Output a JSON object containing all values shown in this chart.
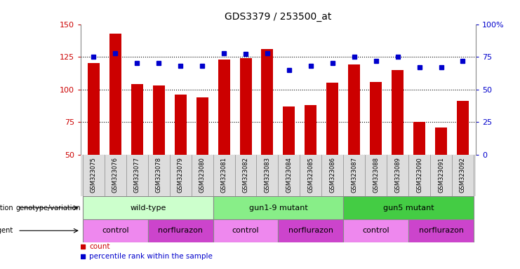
{
  "title": "GDS3379 / 253500_at",
  "samples": [
    "GSM323075",
    "GSM323076",
    "GSM323077",
    "GSM323078",
    "GSM323079",
    "GSM323080",
    "GSM323081",
    "GSM323082",
    "GSM323083",
    "GSM323084",
    "GSM323085",
    "GSM323086",
    "GSM323087",
    "GSM323088",
    "GSM323089",
    "GSM323090",
    "GSM323091",
    "GSM323092"
  ],
  "counts": [
    120,
    143,
    104,
    103,
    96,
    94,
    123,
    124,
    131,
    87,
    88,
    105,
    119,
    106,
    115,
    75,
    71,
    91
  ],
  "percentiles": [
    75,
    78,
    70,
    70,
    68,
    68,
    78,
    77,
    78,
    65,
    68,
    70,
    75,
    72,
    75,
    67,
    67,
    72
  ],
  "ylim_left": [
    50,
    150
  ],
  "ylim_right": [
    0,
    100
  ],
  "yticks_left": [
    50,
    75,
    100,
    125,
    150
  ],
  "yticks_right": [
    0,
    25,
    50,
    75,
    100
  ],
  "bar_color": "#cc0000",
  "dot_color": "#0000cc",
  "grid_color": "#000000",
  "genotype_groups": [
    {
      "label": "wild-type",
      "start": 0,
      "end": 5,
      "color": "#ccffcc"
    },
    {
      "label": "gun1-9 mutant",
      "start": 6,
      "end": 11,
      "color": "#88ee88"
    },
    {
      "label": "gun5 mutant",
      "start": 12,
      "end": 17,
      "color": "#44cc44"
    }
  ],
  "agent_groups": [
    {
      "label": "control",
      "start": 0,
      "end": 2,
      "color": "#ee88ee"
    },
    {
      "label": "norflurazon",
      "start": 3,
      "end": 5,
      "color": "#cc44cc"
    },
    {
      "label": "control",
      "start": 6,
      "end": 8,
      "color": "#ee88ee"
    },
    {
      "label": "norflurazon",
      "start": 9,
      "end": 11,
      "color": "#cc44cc"
    },
    {
      "label": "control",
      "start": 12,
      "end": 14,
      "color": "#ee88ee"
    },
    {
      "label": "norflurazon",
      "start": 15,
      "end": 17,
      "color": "#cc44cc"
    }
  ],
  "legend_count_color": "#cc0000",
  "legend_dot_color": "#0000cc",
  "background_color": "#ffffff",
  "tick_area_color": "#dddddd",
  "tick_label_size": 6.0,
  "title_fontsize": 10,
  "axis_label_color_left": "#cc0000",
  "axis_label_color_right": "#0000cc",
  "bar_width": 0.55
}
